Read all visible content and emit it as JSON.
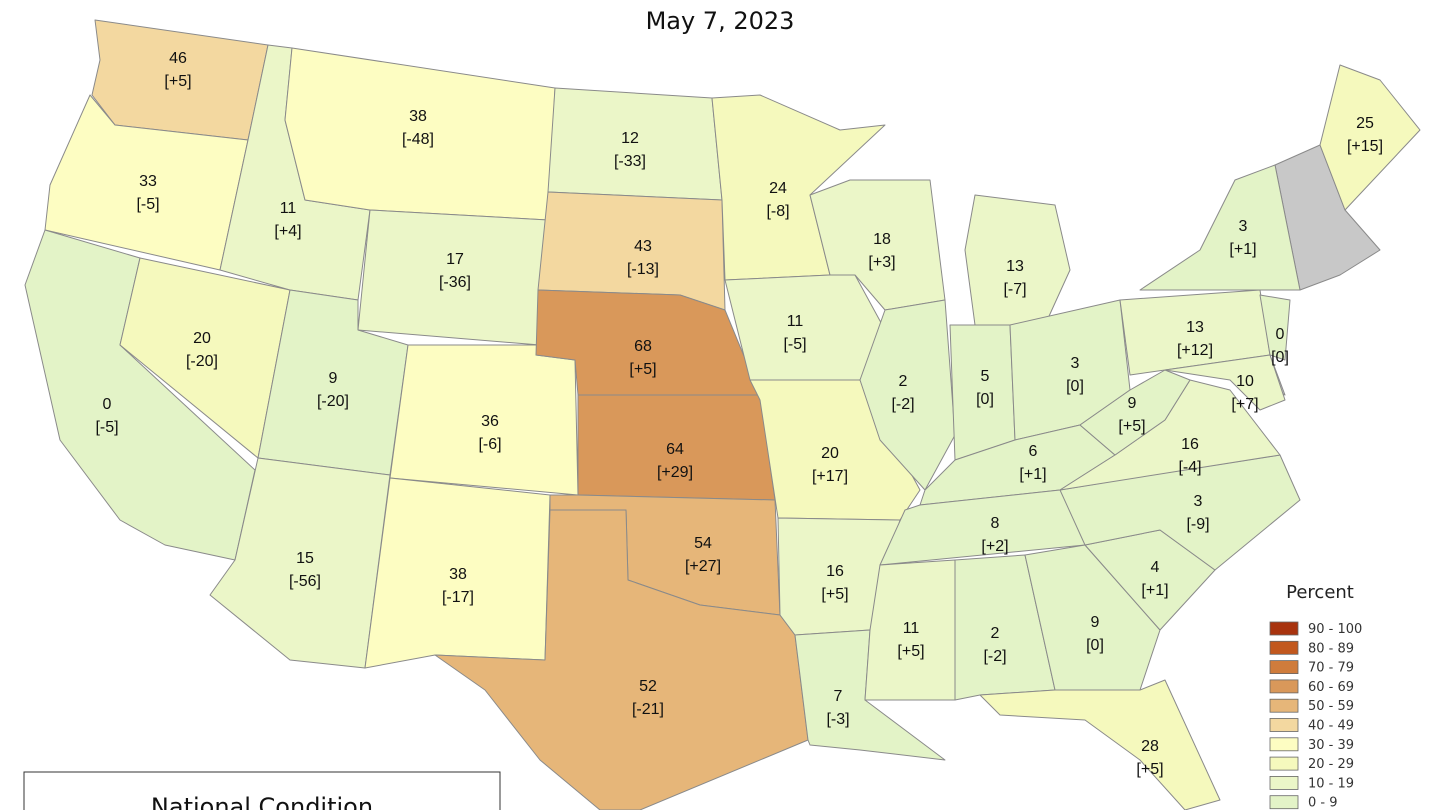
{
  "title": "May 7, 2023",
  "states": [
    {
      "value": 46,
      "change": "[+5]"
    },
    {
      "value": 33,
      "change": "[-5]"
    },
    {
      "value": 0,
      "change": "[-5]"
    },
    {
      "value": 20,
      "change": "[-20]"
    },
    {
      "value": 11,
      "change": "[+4]"
    },
    {
      "value": 38,
      "change": "[-48]"
    },
    {
      "value": 17,
      "change": "[-36]"
    },
    {
      "value": 9,
      "change": "[-20]"
    },
    {
      "value": 36,
      "change": "[-6]"
    },
    {
      "value": 15,
      "change": "[-56]"
    },
    {
      "value": 38,
      "change": "[-17]"
    },
    {
      "value": 12,
      "change": "[-33]"
    },
    {
      "value": 43,
      "change": "[-13]"
    },
    {
      "value": 68,
      "change": "[+5]"
    },
    {
      "value": 64,
      "change": "[+29]"
    },
    {
      "value": 54,
      "change": "[+27]"
    },
    {
      "value": 52,
      "change": "[-21]"
    },
    {
      "value": 24,
      "change": "[-8]"
    },
    {
      "value": 11,
      "change": "[-5]"
    },
    {
      "value": 20,
      "change": "[+17]"
    },
    {
      "value": 16,
      "change": "[+5]"
    },
    {
      "value": 7,
      "change": "[-3]"
    },
    {
      "value": 18,
      "change": "[+3]"
    },
    {
      "value": 2,
      "change": "[-2]"
    },
    {
      "value": 13,
      "change": "[-7]"
    },
    {
      "value": 5,
      "change": "[0]"
    },
    {
      "value": 3,
      "change": "[0]"
    },
    {
      "value": 6,
      "change": "[+1]"
    },
    {
      "value": 8,
      "change": "[+2]"
    },
    {
      "value": 11,
      "change": "[+5]"
    },
    {
      "value": 2,
      "change": "[-2]"
    },
    {
      "value": 9,
      "change": "[0]"
    },
    {
      "value": 28,
      "change": "[+5]"
    },
    {
      "value": 4,
      "change": "[+1]"
    },
    {
      "value": 3,
      "change": "[-9]"
    },
    {
      "value": 16,
      "change": "[-4]"
    },
    {
      "value": 9,
      "change": "[+5]"
    },
    {
      "value": 13,
      "change": "[+12]"
    },
    {
      "value": 3,
      "change": "[+1]"
    },
    {
      "value": 0,
      "change": "[0]"
    },
    {
      "value": 10,
      "change": "[+7]"
    },
    {
      "value": 25,
      "change": "[+15]"
    }
  ],
  "legend": {
    "title": "Percent",
    "bins": [
      {
        "label": "90 - 100",
        "min": 90,
        "max": 100,
        "color": "#a8330e"
      },
      {
        "label": "80 - 89",
        "min": 80,
        "max": 89,
        "color": "#c2581e"
      },
      {
        "label": "70 - 79",
        "min": 70,
        "max": 79,
        "color": "#cf7c3c"
      },
      {
        "label": "60 - 69",
        "min": 60,
        "max": 69,
        "color": "#d9985a"
      },
      {
        "label": "50 - 59",
        "min": 50,
        "max": 59,
        "color": "#e6b679"
      },
      {
        "label": "40 - 49",
        "min": 40,
        "max": 49,
        "color": "#f3d8a0"
      },
      {
        "label": "30 - 39",
        "min": 30,
        "max": 39,
        "color": "#fdfdc2"
      },
      {
        "label": "20 - 29",
        "min": 20,
        "max": 29,
        "color": "#f5f9bd"
      },
      {
        "label": "10 - 19",
        "min": 10,
        "max": 19,
        "color": "#ebf6c8"
      },
      {
        "label": "0 - 9",
        "min": 0,
        "max": 9,
        "color": "#e3f3c7"
      }
    ]
  },
  "box": {
    "title": "National Condition"
  }
}
